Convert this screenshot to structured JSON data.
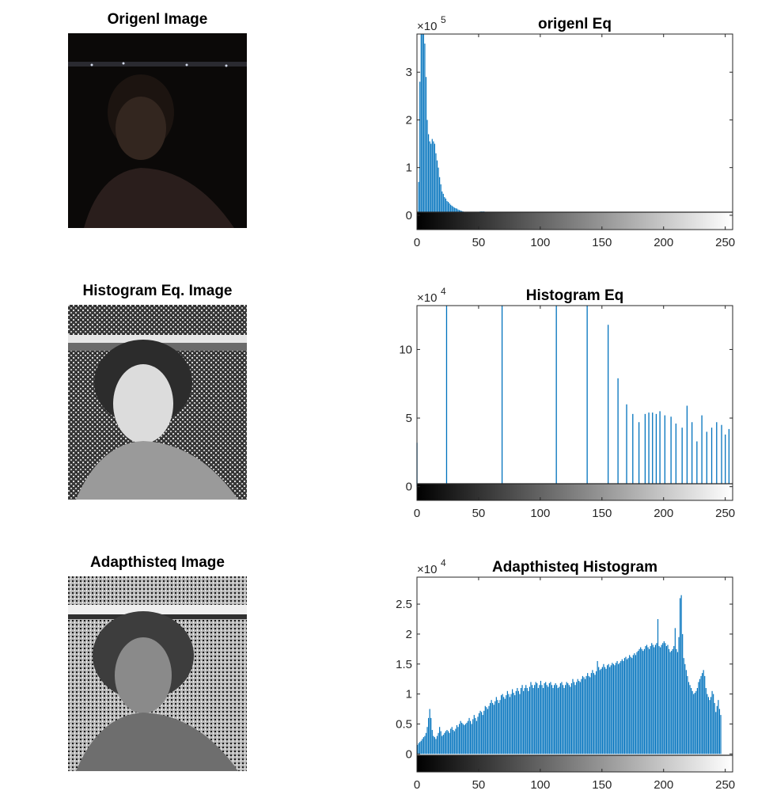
{
  "figure": {
    "images": [
      {
        "title": "Origenl Image",
        "variant": "dark"
      },
      {
        "title": "Histogram Eq. Image",
        "variant": "equalized"
      },
      {
        "title": "Adapthisteq Image",
        "variant": "adaptive"
      }
    ],
    "bar_color": "#0072BD"
  },
  "chart_data": [
    {
      "type": "bar",
      "title": "origenl Eq",
      "exponent_label": "×10",
      "exponent": "5",
      "xlabel": "",
      "ylabel": "",
      "xlim": [
        0,
        256
      ],
      "ylim": [
        -0.3,
        3.8
      ],
      "xticks": [
        0,
        50,
        100,
        150,
        200,
        250
      ],
      "yticks": [
        0,
        1,
        2,
        3
      ],
      "x_start": 0,
      "values": [
        0.05,
        0.7,
        2.8,
        3.8,
        3.8,
        3.8,
        3.6,
        2.9,
        2.0,
        1.7,
        1.55,
        1.5,
        1.6,
        1.55,
        1.5,
        1.3,
        1.15,
        1.0,
        0.8,
        0.65,
        0.5,
        0.45,
        0.38,
        0.35,
        0.3,
        0.28,
        0.25,
        0.22,
        0.2,
        0.18,
        0.16,
        0.15,
        0.14,
        0.12,
        0.11,
        0.1,
        0.09,
        0.08,
        0.07,
        0.07,
        0.06,
        0.06,
        0.05,
        0.05,
        0.05,
        0.05,
        0.06,
        0.06,
        0.06,
        0.07,
        0.07,
        0.08,
        0.08,
        0.08,
        0.08,
        0.07,
        0.07,
        0.06,
        0.05,
        0.05,
        0.04,
        0.04,
        0.03,
        0.03,
        0.02,
        0.02,
        0.015,
        0.01,
        0.01,
        0.005
      ]
    },
    {
      "type": "bar",
      "title": "Histogram Eq",
      "exponent_label": "×10",
      "exponent": "4",
      "xlabel": "",
      "ylabel": "",
      "xlim": [
        0,
        256
      ],
      "ylim": [
        -1.0,
        13.2
      ],
      "xticks": [
        0,
        50,
        100,
        150,
        200,
        250
      ],
      "yticks": [
        0,
        5,
        10
      ],
      "points": [
        [
          0,
          3.2
        ],
        [
          24,
          13.2
        ],
        [
          69,
          13.2
        ],
        [
          113,
          13.2
        ],
        [
          138,
          13.2
        ],
        [
          155,
          11.8
        ],
        [
          163,
          7.9
        ],
        [
          170,
          6.0
        ],
        [
          175,
          5.3
        ],
        [
          180,
          4.7
        ],
        [
          185,
          5.3
        ],
        [
          188,
          5.4
        ],
        [
          191,
          5.4
        ],
        [
          194,
          5.3
        ],
        [
          197,
          5.5
        ],
        [
          201,
          5.2
        ],
        [
          206,
          5.1
        ],
        [
          210,
          4.6
        ],
        [
          215,
          4.3
        ],
        [
          219,
          5.9
        ],
        [
          223,
          4.7
        ],
        [
          227,
          3.3
        ],
        [
          231,
          5.2
        ],
        [
          235,
          4.0
        ],
        [
          239,
          4.3
        ],
        [
          243,
          4.7
        ],
        [
          247,
          4.5
        ],
        [
          250,
          3.8
        ],
        [
          253,
          4.2
        ]
      ]
    },
    {
      "type": "bar",
      "title": "Adapthisteq Histogram",
      "exponent_label": "×10",
      "exponent": "4",
      "xlabel": "",
      "ylabel": "",
      "xlim": [
        0,
        256
      ],
      "ylim": [
        -0.3,
        2.95
      ],
      "xticks": [
        0,
        50,
        100,
        150,
        200,
        250
      ],
      "yticks": [
        0,
        0.5,
        1,
        1.5,
        2,
        2.5
      ],
      "yticklabels": [
        "0",
        "0.5",
        "1",
        "1.5",
        "2",
        "2.5"
      ],
      "x_start": 0,
      "values": [
        0.15,
        0.18,
        0.2,
        0.22,
        0.25,
        0.28,
        0.3,
        0.35,
        0.45,
        0.6,
        0.75,
        0.6,
        0.4,
        0.3,
        0.28,
        0.25,
        0.3,
        0.35,
        0.45,
        0.38,
        0.3,
        0.32,
        0.35,
        0.38,
        0.4,
        0.38,
        0.35,
        0.42,
        0.45,
        0.4,
        0.38,
        0.42,
        0.48,
        0.45,
        0.5,
        0.55,
        0.52,
        0.5,
        0.48,
        0.5,
        0.52,
        0.55,
        0.6,
        0.55,
        0.5,
        0.58,
        0.65,
        0.6,
        0.55,
        0.62,
        0.68,
        0.72,
        0.7,
        0.65,
        0.72,
        0.8,
        0.78,
        0.75,
        0.8,
        0.85,
        0.9,
        0.85,
        0.82,
        0.88,
        0.95,
        0.9,
        0.85,
        0.9,
        0.98,
        1.0,
        0.95,
        0.92,
        0.98,
        1.05,
        1.0,
        0.95,
        1.0,
        1.08,
        1.02,
        0.98,
        1.05,
        1.1,
        1.05,
        1.0,
        1.1,
        1.15,
        1.05,
        1.1,
        1.15,
        1.1,
        1.05,
        1.12,
        1.2,
        1.15,
        1.1,
        1.15,
        1.2,
        1.18,
        1.1,
        1.15,
        1.22,
        1.15,
        1.1,
        1.18,
        1.2,
        1.15,
        1.12,
        1.18,
        1.2,
        1.15,
        1.1,
        1.15,
        1.18,
        1.15,
        1.1,
        1.12,
        1.18,
        1.2,
        1.15,
        1.1,
        1.15,
        1.2,
        1.18,
        1.15,
        1.12,
        1.18,
        1.25,
        1.2,
        1.15,
        1.2,
        1.25,
        1.22,
        1.2,
        1.25,
        1.3,
        1.28,
        1.25,
        1.3,
        1.35,
        1.3,
        1.28,
        1.35,
        1.4,
        1.35,
        1.32,
        1.38,
        1.55,
        1.45,
        1.4,
        1.42,
        1.45,
        1.5,
        1.45,
        1.42,
        1.48,
        1.5,
        1.45,
        1.48,
        1.52,
        1.5,
        1.48,
        1.52,
        1.55,
        1.5,
        1.52,
        1.55,
        1.58,
        1.55,
        1.6,
        1.62,
        1.58,
        1.6,
        1.65,
        1.62,
        1.6,
        1.65,
        1.68,
        1.65,
        1.7,
        1.72,
        1.75,
        1.78,
        1.75,
        1.72,
        1.75,
        1.8,
        1.82,
        1.78,
        1.75,
        1.8,
        1.85,
        1.82,
        1.78,
        1.82,
        1.85,
        2.25,
        1.8,
        1.78,
        1.82,
        1.85,
        1.88,
        1.85,
        1.8,
        1.82,
        1.75,
        1.7,
        1.72,
        1.75,
        1.8,
        2.1,
        1.75,
        1.7,
        1.95,
        2.6,
        2.65,
        2.0,
        1.6,
        1.5,
        1.4,
        1.3,
        1.2,
        1.15,
        1.1,
        1.05,
        1.0,
        1.02,
        1.05,
        1.1,
        1.2,
        1.25,
        1.3,
        1.35,
        1.4,
        1.3,
        1.1,
        1.0,
        0.95,
        0.9,
        0.95,
        1.05,
        1.0,
        0.85,
        0.7,
        0.8,
        0.9,
        0.75,
        0.65
      ]
    }
  ]
}
